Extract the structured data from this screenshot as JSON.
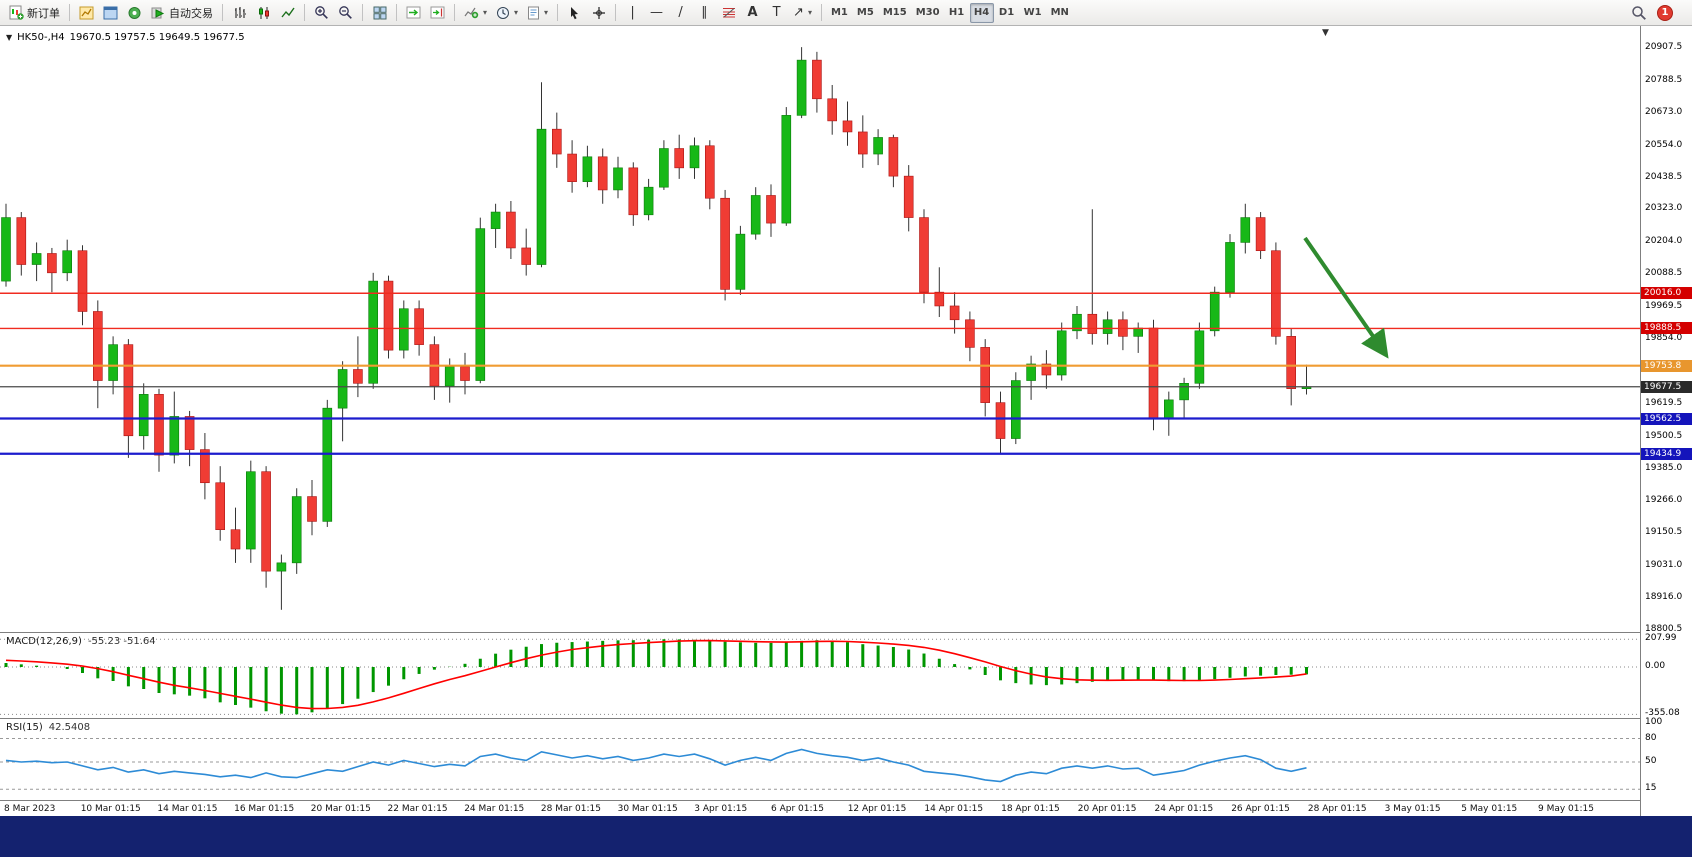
{
  "window": {
    "frame_color": "#14226f"
  },
  "toolbar": {
    "new_order_label": "新订单",
    "autotrading_label": "自动交易",
    "timeframes": [
      "M1",
      "M5",
      "M15",
      "M30",
      "H1",
      "H4",
      "D1",
      "W1",
      "MN"
    ],
    "active_timeframe": "H4",
    "notification_count": "1"
  },
  "chart": {
    "symbol_period": "HK50-,H4",
    "ohlc_text": "19670.5 19757.5 19649.5 19677.5",
    "scale_labels": [
      "20907.5",
      "20788.5",
      "20673.0",
      "20554.0",
      "20438.5",
      "20323.0",
      "20204.0",
      "20088.5",
      "19969.5",
      "19854.0",
      "19738.0",
      "19619.5",
      "19500.5",
      "19385.0",
      "19266.0",
      "19150.5",
      "19031.0",
      "18916.0",
      "18800.5"
    ],
    "levels": [
      {
        "price": 20016.0,
        "label": "20016.0",
        "color": "#f02b20",
        "tag": "#d40000",
        "width": 1.4
      },
      {
        "price": 19888.5,
        "label": "19888.5",
        "color": "#f02b20",
        "tag": "#d40000",
        "width": 1.4
      },
      {
        "price": 19753.8,
        "label": "19753.8",
        "color": "#f09c32",
        "tag": "#e8962e",
        "width": 2.2
      },
      {
        "price": 19677.5,
        "label": "19677.5",
        "color": "#4a4a4a",
        "tag": "#2a2a2a",
        "width": 1.2
      },
      {
        "price": 19562.5,
        "label": "19562.5",
        "color": "#1c1ccd",
        "tag": "#1414bb",
        "width": 2.2
      },
      {
        "price": 19434.9,
        "label": "19434.9",
        "color": "#1c1ccd",
        "tag": "#1414bb",
        "width": 2.2
      }
    ],
    "colors": {
      "up": "#17b817",
      "down": "#f03c34",
      "wick": "#333333",
      "up_edge": "#0a7a0a",
      "down_edge": "#a81414"
    },
    "annotation_arrow": {
      "color": "#2f8b2f"
    },
    "candles": [
      [
        20060,
        20340,
        20040,
        20290
      ],
      [
        20290,
        20310,
        20080,
        20120
      ],
      [
        20120,
        20200,
        20060,
        20160
      ],
      [
        20160,
        20180,
        20020,
        20090
      ],
      [
        20090,
        20210,
        20060,
        20170
      ],
      [
        20170,
        20190,
        19900,
        19950
      ],
      [
        19950,
        19990,
        19600,
        19700
      ],
      [
        19700,
        19860,
        19650,
        19830
      ],
      [
        19830,
        19850,
        19420,
        19500
      ],
      [
        19500,
        19690,
        19450,
        19650
      ],
      [
        19650,
        19670,
        19370,
        19430
      ],
      [
        19430,
        19660,
        19400,
        19570
      ],
      [
        19570,
        19590,
        19390,
        19450
      ],
      [
        19450,
        19510,
        19270,
        19330
      ],
      [
        19330,
        19390,
        19120,
        19160
      ],
      [
        19160,
        19240,
        19040,
        19090
      ],
      [
        19090,
        19410,
        19040,
        19370
      ],
      [
        19370,
        19390,
        18950,
        19010
      ],
      [
        19010,
        19070,
        18870,
        19040
      ],
      [
        19040,
        19310,
        19000,
        19280
      ],
      [
        19280,
        19340,
        19140,
        19190
      ],
      [
        19190,
        19630,
        19170,
        19600
      ],
      [
        19600,
        19770,
        19480,
        19740
      ],
      [
        19740,
        19860,
        19640,
        19690
      ],
      [
        19690,
        20090,
        19670,
        20060
      ],
      [
        20060,
        20080,
        19780,
        19810
      ],
      [
        19810,
        19990,
        19780,
        19960
      ],
      [
        19960,
        19990,
        19790,
        19830
      ],
      [
        19830,
        19860,
        19630,
        19680
      ],
      [
        19680,
        19780,
        19620,
        19750
      ],
      [
        19750,
        19800,
        19650,
        19700
      ],
      [
        19700,
        20290,
        19690,
        20250
      ],
      [
        20250,
        20340,
        20180,
        20310
      ],
      [
        20310,
        20350,
        20140,
        20180
      ],
      [
        20180,
        20250,
        20080,
        20120
      ],
      [
        20120,
        20780,
        20110,
        20610
      ],
      [
        20610,
        20670,
        20470,
        20520
      ],
      [
        20520,
        20570,
        20380,
        20420
      ],
      [
        20420,
        20550,
        20400,
        20510
      ],
      [
        20510,
        20540,
        20340,
        20390
      ],
      [
        20390,
        20510,
        20360,
        20470
      ],
      [
        20470,
        20490,
        20260,
        20300
      ],
      [
        20300,
        20430,
        20280,
        20400
      ],
      [
        20400,
        20570,
        20390,
        20540
      ],
      [
        20540,
        20590,
        20430,
        20470
      ],
      [
        20470,
        20580,
        20430,
        20550
      ],
      [
        20550,
        20570,
        20320,
        20360
      ],
      [
        20360,
        20390,
        19990,
        20030
      ],
      [
        20030,
        20260,
        20010,
        20230
      ],
      [
        20230,
        20400,
        20210,
        20370
      ],
      [
        20370,
        20410,
        20220,
        20270
      ],
      [
        20270,
        20690,
        20260,
        20660
      ],
      [
        20660,
        20907,
        20650,
        20860
      ],
      [
        20860,
        20890,
        20670,
        20720
      ],
      [
        20720,
        20770,
        20590,
        20640
      ],
      [
        20640,
        20710,
        20550,
        20600
      ],
      [
        20600,
        20660,
        20470,
        20520
      ],
      [
        20520,
        20610,
        20480,
        20580
      ],
      [
        20580,
        20590,
        20400,
        20440
      ],
      [
        20440,
        20480,
        20240,
        20290
      ],
      [
        20290,
        20320,
        19980,
        20020
      ],
      [
        20020,
        20110,
        19930,
        19970
      ],
      [
        19970,
        20020,
        19870,
        19920
      ],
      [
        19920,
        19950,
        19770,
        19820
      ],
      [
        19820,
        19850,
        19570,
        19620
      ],
      [
        19620,
        19660,
        19435,
        19490
      ],
      [
        19490,
        19730,
        19470,
        19700
      ],
      [
        19700,
        19790,
        19630,
        19760
      ],
      [
        19760,
        19810,
        19670,
        19720
      ],
      [
        19720,
        19910,
        19700,
        19880
      ],
      [
        19880,
        19970,
        19850,
        19940
      ],
      [
        19940,
        20320,
        19830,
        19870
      ],
      [
        19870,
        19950,
        19830,
        19920
      ],
      [
        19920,
        19950,
        19810,
        19860
      ],
      [
        19860,
        19910,
        19800,
        19890
      ],
      [
        19890,
        19920,
        19520,
        19560
      ],
      [
        19560,
        19660,
        19500,
        19630
      ],
      [
        19630,
        19710,
        19560,
        19690
      ],
      [
        19690,
        19910,
        19670,
        19880
      ],
      [
        19880,
        20040,
        19860,
        20020
      ],
      [
        20020,
        20230,
        20000,
        20200
      ],
      [
        20200,
        20340,
        20160,
        20290
      ],
      [
        20290,
        20310,
        20140,
        20170
      ],
      [
        20170,
        20200,
        19830,
        19860
      ],
      [
        19860,
        19890,
        19610,
        19670.5
      ],
      [
        19670.5,
        19757.5,
        19649.5,
        19677.5
      ]
    ]
  },
  "macd": {
    "title": "MACD(12,26,9)",
    "values_text": "-55.23 -51.64",
    "scale_labels": [
      "207.99",
      "0.00",
      "-355.08"
    ],
    "hist_color": "#009600",
    "signal_color": "#ff0000",
    "histogram": [
      30,
      20,
      10,
      0,
      -15,
      -45,
      -85,
      -105,
      -145,
      -165,
      -195,
      -205,
      -215,
      -235,
      -265,
      -285,
      -305,
      -332,
      -350,
      -355,
      -340,
      -308,
      -278,
      -238,
      -188,
      -140,
      -92,
      -52,
      -20,
      2,
      24,
      62,
      100,
      130,
      152,
      172,
      182,
      187,
      191,
      196,
      200,
      201,
      205,
      208,
      207,
      204,
      199,
      190,
      185,
      181,
      181,
      186,
      196,
      201,
      196,
      186,
      171,
      161,
      150,
      131,
      101,
      62,
      22,
      -18,
      -60,
      -100,
      -121,
      -131,
      -136,
      -131,
      -121,
      -111,
      -101,
      -96,
      -95,
      -101,
      -106,
      -106,
      -100,
      -91,
      -81,
      -71,
      -65,
      -60,
      -58,
      -55.23
    ],
    "signal": [
      50,
      45,
      39,
      31,
      21,
      7,
      -12,
      -35,
      -62,
      -88,
      -114,
      -137,
      -156,
      -176,
      -198,
      -220,
      -241,
      -264,
      -286,
      -303,
      -312,
      -311,
      -303,
      -287,
      -262,
      -232,
      -197,
      -161,
      -126,
      -94,
      -65,
      -33,
      0,
      32,
      62,
      89,
      112,
      131,
      145,
      158,
      168,
      176,
      183,
      189,
      194,
      197,
      198,
      196,
      193,
      190,
      188,
      187,
      189,
      192,
      193,
      191,
      186,
      180,
      172,
      162,
      147,
      126,
      100,
      70,
      38,
      4,
      -27,
      -53,
      -74,
      -88,
      -96,
      -99,
      -100,
      -99,
      -98,
      -98,
      -100,
      -101,
      -101,
      -98,
      -94,
      -88,
      -82,
      -76,
      -68,
      -51.64
    ]
  },
  "rsi": {
    "title": "RSI(15)",
    "value_text": "42.5408",
    "scale_labels": [
      "100",
      "80",
      "50",
      "15"
    ],
    "levels": [
      80,
      50,
      15
    ],
    "line_color": "#2d8bd6",
    "values": [
      52,
      50,
      51,
      49,
      50,
      45,
      40,
      43,
      37,
      40,
      35,
      38,
      36,
      34,
      31,
      33,
      30,
      36,
      31,
      30,
      35,
      40,
      38,
      44,
      50,
      46,
      52,
      48,
      44,
      47,
      45,
      57,
      60,
      55,
      52,
      63,
      59,
      55,
      58,
      54,
      57,
      52,
      55,
      60,
      57,
      60,
      54,
      46,
      52,
      56,
      52,
      61,
      66,
      61,
      58,
      56,
      52,
      55,
      50,
      46,
      38,
      36,
      34,
      31,
      27,
      25,
      33,
      37,
      35,
      42,
      45,
      42,
      45,
      41,
      42,
      33,
      36,
      39,
      46,
      51,
      55,
      58,
      53,
      42,
      38,
      42.54
    ]
  },
  "time_axis": {
    "labels": [
      "8 Mar 2023",
      "10 Mar 01:15",
      "14 Mar 01:15",
      "16 Mar 01:15",
      "20 Mar 01:15",
      "22 Mar 01:15",
      "24 Mar 01:15",
      "28 Mar 01:15",
      "30 Mar 01:15",
      "3 Apr 01:15",
      "6 Apr 01:15",
      "12 Apr 01:15",
      "14 Apr 01:15",
      "18 Apr 01:15",
      "20 Apr 01:15",
      "24 Apr 01:15",
      "26 Apr 01:15",
      "28 Apr 01:15",
      "3 May 01:15",
      "5 May 01:15",
      "9 May 01:15"
    ]
  }
}
